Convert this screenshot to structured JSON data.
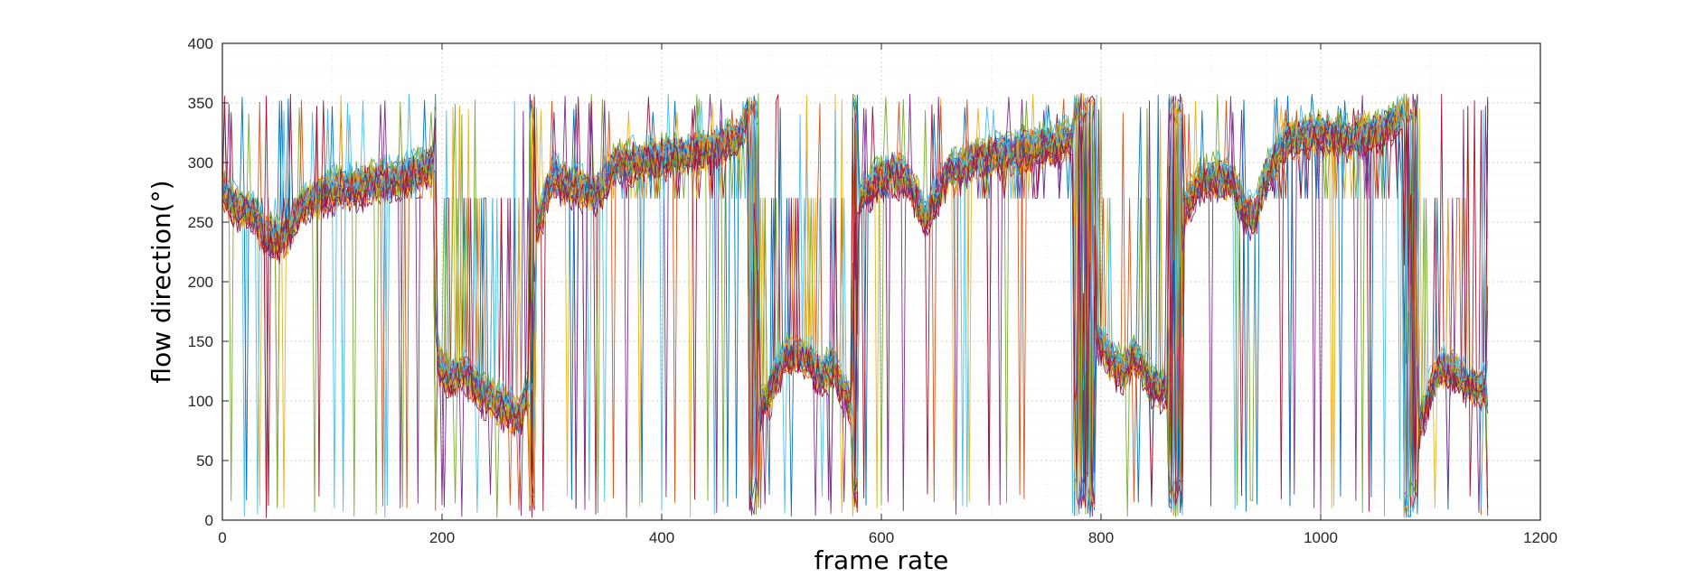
{
  "chart_data": {
    "type": "line",
    "title": "",
    "xlabel": "frame rate",
    "ylabel": "flow direction(°)",
    "xlim": [
      0,
      1200
    ],
    "ylim": [
      0,
      400
    ],
    "x_ticks": [
      0,
      200,
      400,
      600,
      800,
      1000,
      1200
    ],
    "y_ticks": [
      0,
      50,
      100,
      150,
      200,
      250,
      300,
      350,
      400
    ],
    "x_tick_labels": [
      "0",
      "200",
      "400",
      "600",
      "800",
      "1000",
      "1200"
    ],
    "y_tick_labels": [
      "0",
      "50",
      "100",
      "150",
      "200",
      "250",
      "300",
      "350",
      "400"
    ],
    "grid": true,
    "minor_grid": true,
    "legend": "none",
    "series_count": 28,
    "x_step": 2,
    "series_colors": [
      "#0072BD",
      "#D95319",
      "#EDB120",
      "#7E2F8E",
      "#77AC30",
      "#4DBEEE",
      "#A2142F"
    ],
    "segments": [
      {
        "x": [
          0,
          8,
          15,
          25,
          40,
          55,
          75,
          100,
          130,
          160,
          185,
          192
        ],
        "y": [
          280,
          265,
          262,
          260,
          240,
          235,
          265,
          278,
          282,
          288,
          295,
          300
        ]
      },
      {
        "x": [
          196,
          205,
          220,
          240,
          260,
          270,
          278
        ],
        "y": [
          140,
          120,
          125,
          105,
          95,
          85,
          110
        ]
      },
      {
        "x": [
          285,
          300,
          320,
          340,
          360,
          400,
          440,
          470,
          478
        ],
        "y": [
          240,
          290,
          280,
          275,
          300,
          305,
          310,
          320,
          340
        ]
      },
      {
        "x": [
          490,
          500,
          510,
          520,
          535,
          545,
          555,
          565,
          572
        ],
        "y": [
          95,
          110,
          135,
          140,
          135,
          120,
          130,
          110,
          100
        ]
      },
      {
        "x": [
          580,
          595,
          610,
          625,
          640,
          660,
          690,
          720,
          750,
          775
        ],
        "y": [
          270,
          285,
          295,
          285,
          255,
          290,
          305,
          310,
          315,
          320
        ]
      },
      {
        "x": [
          795,
          810,
          820,
          830,
          845,
          860
        ],
        "y": [
          155,
          135,
          125,
          140,
          115,
          110
        ]
      },
      {
        "x": [
          875,
          890,
          905,
          920,
          930,
          940,
          950,
          970,
          1000,
          1030,
          1060,
          1075
        ],
        "y": [
          260,
          285,
          290,
          285,
          260,
          255,
          290,
          320,
          325,
          320,
          330,
          340
        ]
      },
      {
        "x": [
          1090,
          1100,
          1110,
          1120,
          1135,
          1150
        ],
        "y": [
          80,
          110,
          130,
          125,
          115,
          110
        ]
      }
    ]
  }
}
